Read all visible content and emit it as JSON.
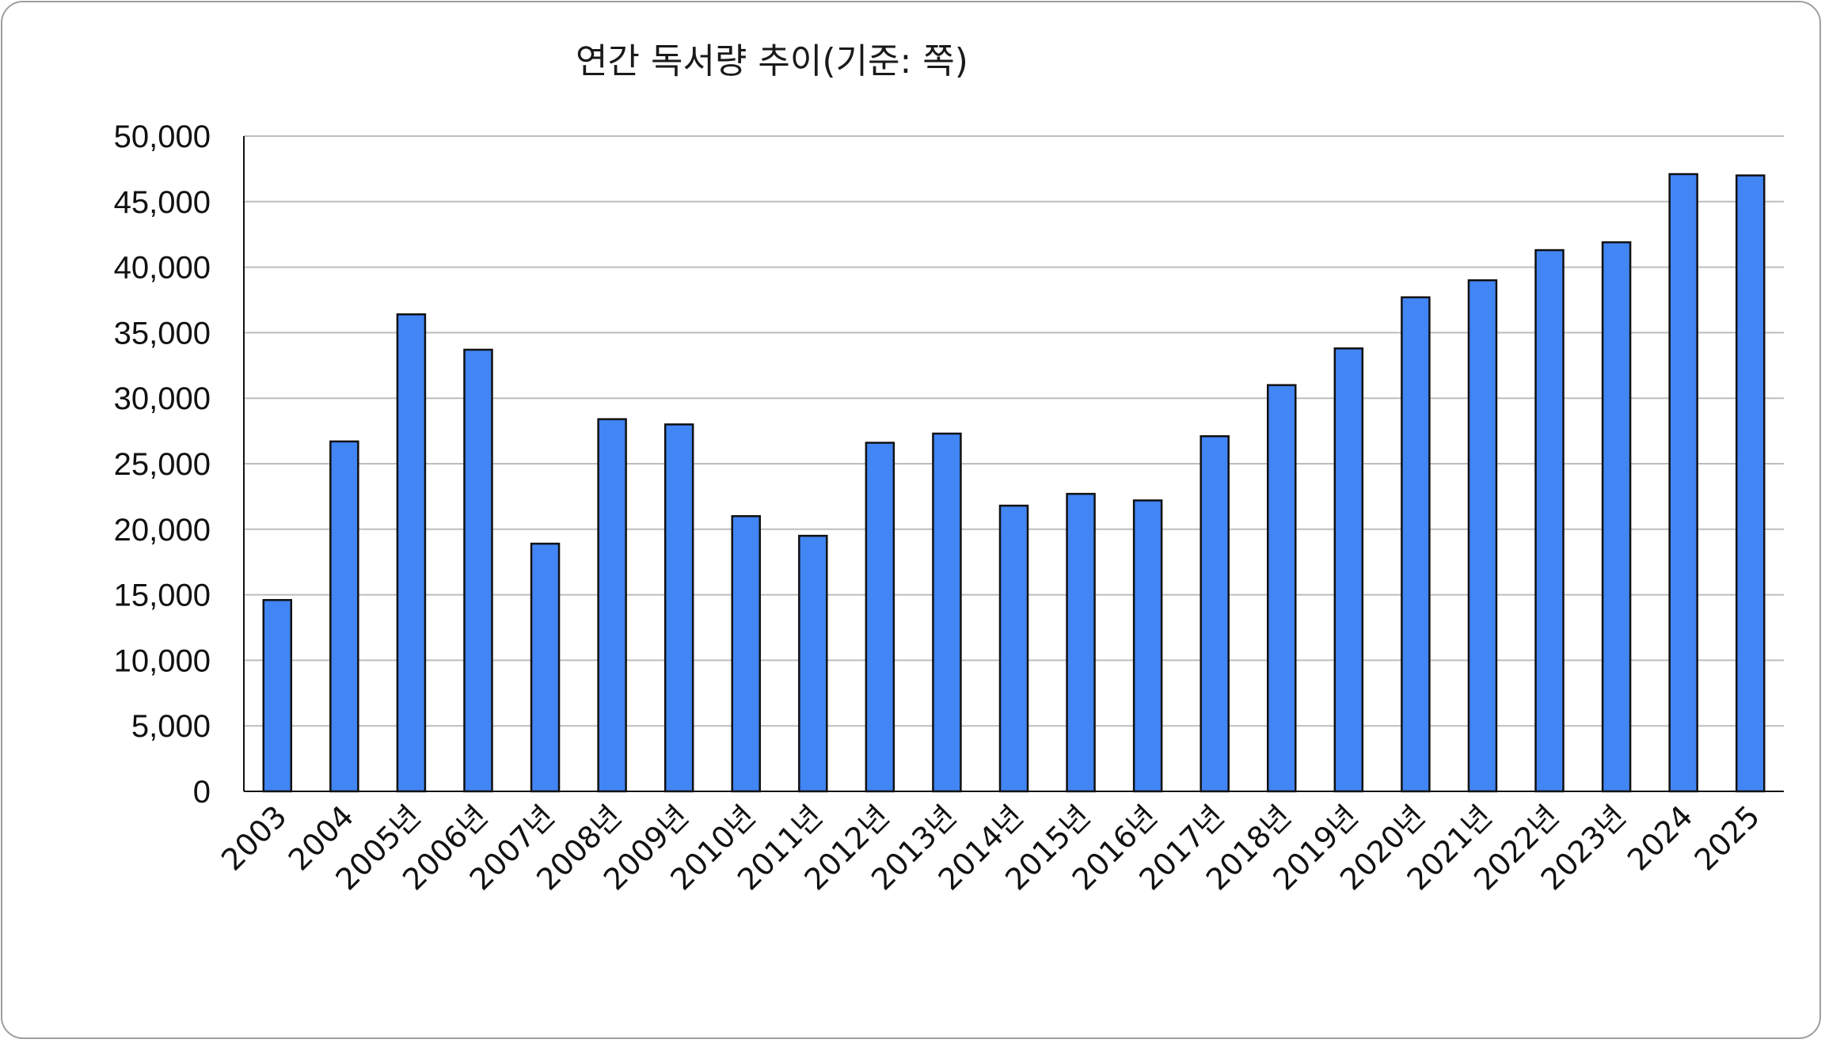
{
  "chart_data": {
    "type": "bar",
    "title": "연간 독서량 추이(기준: 쪽)",
    "xlabel": "",
    "ylabel": "",
    "categories": [
      "2003",
      "2004",
      "2005년",
      "2006년",
      "2007년",
      "2008년",
      "2009년",
      "2010년",
      "2011년",
      "2012년",
      "2013년",
      "2014년",
      "2015년",
      "2016년",
      "2017년",
      "2018년",
      "2019년",
      "2020년",
      "2021년",
      "2022년",
      "2023년",
      "2024",
      "2025"
    ],
    "values": [
      14600,
      26700,
      36400,
      33700,
      18900,
      28400,
      28000,
      21000,
      19500,
      26600,
      27300,
      21800,
      22700,
      22200,
      27100,
      31000,
      33800,
      37700,
      39000,
      41300,
      41900,
      47100,
      47000
    ],
    "ylim": [
      0,
      50000
    ],
    "yticks": [
      0,
      5000,
      10000,
      15000,
      20000,
      25000,
      30000,
      35000,
      40000,
      45000,
      50000
    ],
    "ytick_labels": [
      "0",
      "5,000",
      "10,000",
      "15,000",
      "20,000",
      "25,000",
      "30,000",
      "35,000",
      "40,000",
      "45,000",
      "50,000"
    ],
    "grid": true,
    "legend": "none",
    "bar_color": "#4285f4",
    "x_label_rotation": -45
  }
}
